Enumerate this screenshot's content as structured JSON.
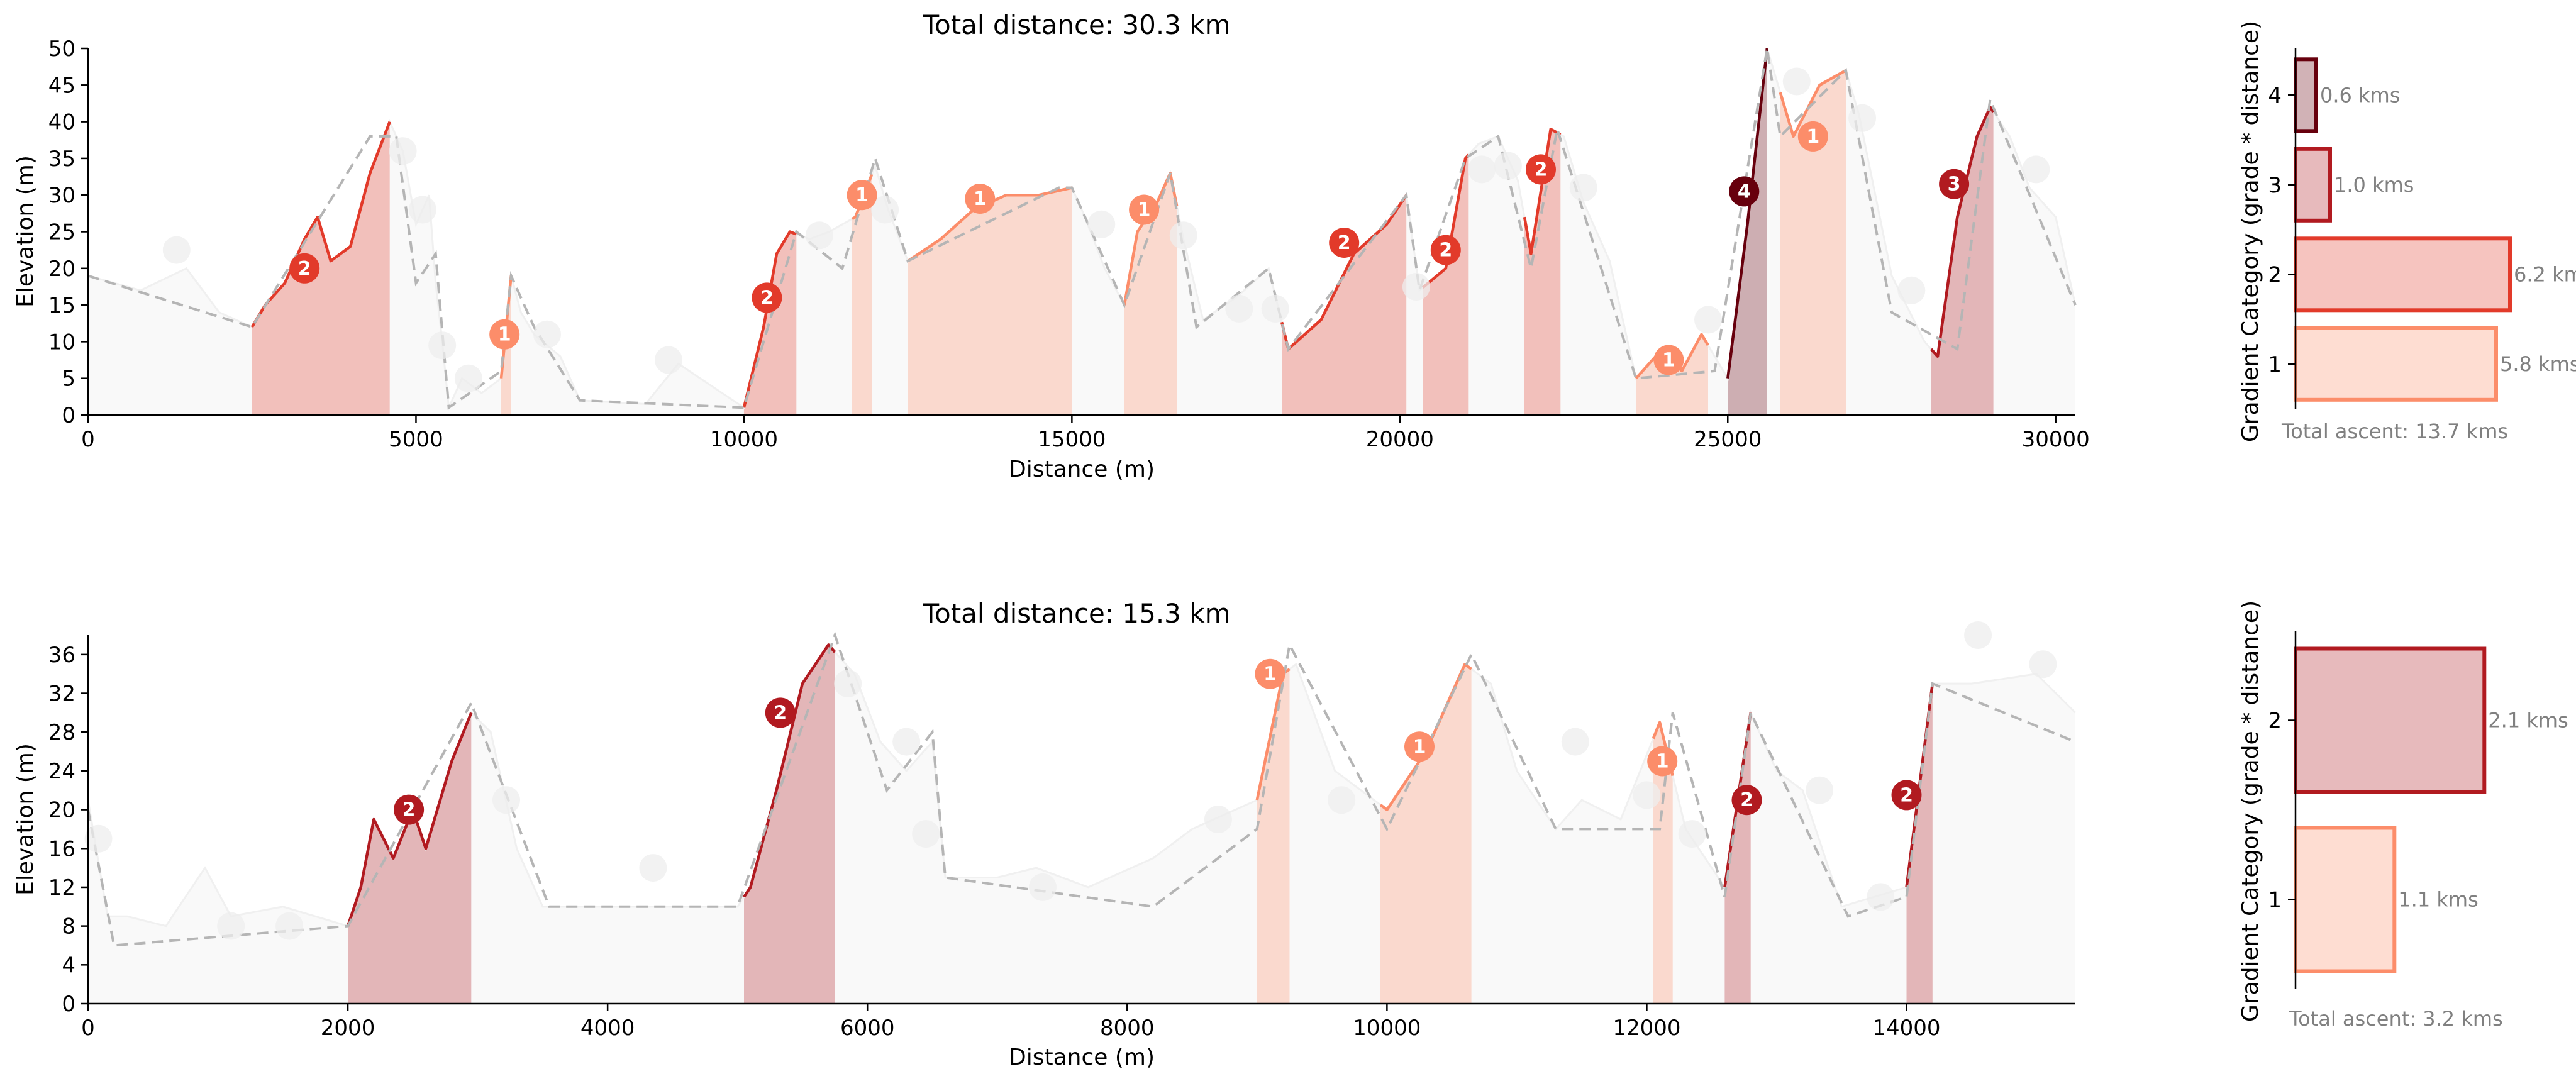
{
  "colors": {
    "cat1": "#fc8d6a",
    "cat2": "#e23a2a",
    "cat3": "#b11a20",
    "cat4": "#67000d",
    "baseline": "#f0f0f0",
    "road": "#b5b5b5"
  },
  "chart_data": [
    {
      "id": "top",
      "type": "area",
      "title": "Total distance: 30.3 km",
      "xlabel": "Distance (m)",
      "ylabel": "Elevation (m)",
      "xlim": [
        0,
        30300
      ],
      "ylim": [
        0,
        50
      ],
      "xticks": [
        "0",
        "5000",
        "10000",
        "15000",
        "20000",
        "25000",
        "30000"
      ],
      "yticks": [
        "0",
        "5",
        "10",
        "15",
        "20",
        "25",
        "30",
        "35",
        "40",
        "45",
        "50"
      ],
      "profile": [
        [
          0,
          19
        ],
        [
          800,
          17
        ],
        [
          1500,
          20
        ],
        [
          2000,
          14
        ],
        [
          2500,
          12
        ],
        [
          2700,
          15
        ],
        [
          3000,
          18
        ],
        [
          3300,
          24
        ],
        [
          3500,
          27
        ],
        [
          3700,
          21
        ],
        [
          4000,
          23
        ],
        [
          4300,
          33
        ],
        [
          4600,
          40
        ],
        [
          4800,
          36
        ],
        [
          5000,
          26
        ],
        [
          5200,
          30
        ],
        [
          5300,
          18
        ],
        [
          5400,
          10
        ],
        [
          5500,
          1
        ],
        [
          5700,
          5
        ],
        [
          6000,
          3
        ],
        [
          6300,
          5
        ],
        [
          6450,
          19
        ],
        [
          6600,
          14
        ],
        [
          6800,
          11
        ],
        [
          7200,
          8
        ],
        [
          7500,
          2
        ],
        [
          8500,
          1.5
        ],
        [
          9000,
          7
        ],
        [
          9500,
          4
        ],
        [
          10000,
          1
        ],
        [
          10300,
          12
        ],
        [
          10500,
          22
        ],
        [
          10700,
          25
        ],
        [
          11000,
          24
        ],
        [
          11300,
          25
        ],
        [
          11700,
          27
        ],
        [
          12000,
          34
        ],
        [
          12200,
          28
        ],
        [
          12500,
          21
        ],
        [
          13000,
          24
        ],
        [
          13500,
          28
        ],
        [
          14000,
          30
        ],
        [
          14500,
          30
        ],
        [
          15000,
          31
        ],
        [
          15200,
          27
        ],
        [
          15500,
          20
        ],
        [
          15800,
          15
        ],
        [
          16000,
          25
        ],
        [
          16300,
          29
        ],
        [
          16500,
          33
        ],
        [
          16700,
          24
        ],
        [
          17000,
          13
        ],
        [
          17500,
          16
        ],
        [
          18000,
          20
        ],
        [
          18300,
          9
        ],
        [
          18800,
          13
        ],
        [
          19300,
          22
        ],
        [
          19800,
          26
        ],
        [
          20100,
          30
        ],
        [
          20300,
          17
        ],
        [
          20700,
          20
        ],
        [
          21000,
          35
        ],
        [
          21200,
          37
        ],
        [
          21500,
          38
        ],
        [
          21800,
          32
        ],
        [
          22000,
          22
        ],
        [
          22300,
          39
        ],
        [
          22500,
          38
        ],
        [
          22800,
          29
        ],
        [
          23200,
          21
        ],
        [
          23600,
          5
        ],
        [
          24000,
          9
        ],
        [
          24300,
          6
        ],
        [
          24600,
          11
        ],
        [
          25000,
          5
        ],
        [
          25300,
          26
        ],
        [
          25600,
          50
        ],
        [
          25800,
          44
        ],
        [
          26000,
          38
        ],
        [
          26400,
          45
        ],
        [
          26800,
          47
        ],
        [
          27000,
          41
        ],
        [
          27500,
          19
        ],
        [
          28000,
          10
        ],
        [
          28200,
          8
        ],
        [
          28500,
          27
        ],
        [
          28800,
          38
        ],
        [
          29000,
          42
        ],
        [
          29300,
          38
        ],
        [
          29600,
          31
        ],
        [
          30000,
          27
        ],
        [
          30300,
          15
        ]
      ],
      "road": [
        [
          0,
          19
        ],
        [
          2500,
          12
        ],
        [
          4300,
          38
        ],
        [
          4700,
          38
        ],
        [
          5000,
          18
        ],
        [
          5300,
          22
        ],
        [
          5500,
          1
        ],
        [
          6300,
          6
        ],
        [
          6450,
          19
        ],
        [
          6800,
          12
        ],
        [
          7500,
          2
        ],
        [
          10000,
          1
        ],
        [
          10800,
          25
        ],
        [
          11500,
          20
        ],
        [
          12000,
          35
        ],
        [
          12500,
          21
        ],
        [
          14800,
          31
        ],
        [
          15000,
          31
        ],
        [
          15800,
          15
        ],
        [
          16500,
          33
        ],
        [
          16900,
          12
        ],
        [
          18000,
          20
        ],
        [
          18300,
          9
        ],
        [
          20100,
          30
        ],
        [
          20300,
          17
        ],
        [
          21000,
          35
        ],
        [
          21500,
          38
        ],
        [
          22000,
          20
        ],
        [
          22400,
          39
        ],
        [
          23600,
          5
        ],
        [
          24800,
          6
        ],
        [
          25600,
          50
        ],
        [
          25800,
          38
        ],
        [
          26800,
          47
        ],
        [
          27500,
          14
        ],
        [
          28500,
          9
        ],
        [
          29000,
          43
        ],
        [
          30300,
          15
        ]
      ],
      "climbs": [
        {
          "start": 2500,
          "end": 4600,
          "cat": 2
        },
        {
          "start": 6300,
          "end": 6450,
          "cat": 1
        },
        {
          "start": 10000,
          "end": 10800,
          "cat": 2
        },
        {
          "start": 11650,
          "end": 11950,
          "cat": 1
        },
        {
          "start": 12500,
          "end": 15000,
          "cat": 1
        },
        {
          "start": 15800,
          "end": 16600,
          "cat": 1
        },
        {
          "start": 18200,
          "end": 20100,
          "cat": 2
        },
        {
          "start": 20350,
          "end": 21050,
          "cat": 2
        },
        {
          "start": 21900,
          "end": 22450,
          "cat": 2
        },
        {
          "start": 23600,
          "end": 24700,
          "cat": 1
        },
        {
          "start": 25000,
          "end": 25600,
          "cat": 4
        },
        {
          "start": 25800,
          "end": 26800,
          "cat": 1
        },
        {
          "start": 28100,
          "end": 29050,
          "cat": 3
        }
      ],
      "markers": [
        {
          "x": 3300,
          "y": 20,
          "label": "2",
          "cat": 2
        },
        {
          "x": 6350,
          "y": 11,
          "label": "1",
          "cat": 1
        },
        {
          "x": 10350,
          "y": 16,
          "label": "2",
          "cat": 2
        },
        {
          "x": 11800,
          "y": 30,
          "label": "1",
          "cat": 1
        },
        {
          "x": 13600,
          "y": 29.5,
          "label": "1",
          "cat": 1
        },
        {
          "x": 16100,
          "y": 28,
          "label": "1",
          "cat": 1
        },
        {
          "x": 19150,
          "y": 23.5,
          "label": "2",
          "cat": 2
        },
        {
          "x": 20700,
          "y": 22.5,
          "label": "2",
          "cat": 2
        },
        {
          "x": 22150,
          "y": 33.5,
          "label": "2",
          "cat": 2
        },
        {
          "x": 24100,
          "y": 7.5,
          "label": "1",
          "cat": 1
        },
        {
          "x": 25250,
          "y": 30.5,
          "label": "4",
          "cat": 4
        },
        {
          "x": 26300,
          "y": 38,
          "label": "1",
          "cat": 1
        },
        {
          "x": 28450,
          "y": 31.5,
          "label": "3",
          "cat": 3
        }
      ],
      "ghost_markers": [
        [
          1350,
          22.5
        ],
        [
          4800,
          36
        ],
        [
          5100,
          28
        ],
        [
          5400,
          9.5
        ],
        [
          5800,
          5
        ],
        [
          7000,
          11
        ],
        [
          8850,
          7.5
        ],
        [
          11150,
          24.5
        ],
        [
          12150,
          28
        ],
        [
          15450,
          26
        ],
        [
          16700,
          24.5
        ],
        [
          17550,
          14.5
        ],
        [
          18100,
          14.5
        ],
        [
          20250,
          17.5
        ],
        [
          21250,
          33.5
        ],
        [
          21650,
          34
        ],
        [
          22800,
          31
        ],
        [
          24700,
          13
        ],
        [
          26050,
          45.5
        ],
        [
          27050,
          40.5
        ],
        [
          27800,
          17
        ],
        [
          29700,
          33.5
        ]
      ],
      "summary": {
        "ylabel": "Gradient Category (grade * distance)",
        "categories": [
          "1",
          "2",
          "3",
          "4"
        ],
        "values": [
          5.8,
          6.2,
          1.0,
          0.6
        ],
        "labels": [
          "5.8 kms",
          "6.2 kms",
          "1.0 kms",
          "0.6 kms"
        ],
        "total_ascent": "Total ascent:  13.7 kms"
      }
    },
    {
      "id": "bottom",
      "type": "area",
      "title": "Total distance: 15.3 km",
      "xlabel": "Distance (m)",
      "ylabel": "Elevation (m)",
      "xlim": [
        0,
        15300
      ],
      "ylim": [
        0,
        38
      ],
      "xticks": [
        "0",
        "2000",
        "4000",
        "6000",
        "8000",
        "10000",
        "12000",
        "14000"
      ],
      "yticks": [
        "0",
        "4",
        "8",
        "12",
        "16",
        "20",
        "24",
        "28",
        "32",
        "36"
      ],
      "profile": [
        [
          0,
          21
        ],
        [
          150,
          9
        ],
        [
          300,
          9
        ],
        [
          600,
          8
        ],
        [
          900,
          14
        ],
        [
          1100,
          9
        ],
        [
          1500,
          10
        ],
        [
          2000,
          8
        ],
        [
          2100,
          12
        ],
        [
          2200,
          19
        ],
        [
          2350,
          15
        ],
        [
          2500,
          20
        ],
        [
          2600,
          16
        ],
        [
          2800,
          25
        ],
        [
          2950,
          30
        ],
        [
          3100,
          28
        ],
        [
          3300,
          16
        ],
        [
          3500,
          10
        ],
        [
          4000,
          10
        ],
        [
          4500,
          10
        ],
        [
          5000,
          10
        ],
        [
          5100,
          12
        ],
        [
          5300,
          22
        ],
        [
          5500,
          33
        ],
        [
          5700,
          37
        ],
        [
          5900,
          34
        ],
        [
          6100,
          27
        ],
        [
          6300,
          24
        ],
        [
          6500,
          27
        ],
        [
          6600,
          13
        ],
        [
          7000,
          13
        ],
        [
          7300,
          14
        ],
        [
          7700,
          12
        ],
        [
          8200,
          15
        ],
        [
          8500,
          18
        ],
        [
          9000,
          21
        ],
        [
          9200,
          34
        ],
        [
          9300,
          35
        ],
        [
          9600,
          24
        ],
        [
          10000,
          20
        ],
        [
          10300,
          26
        ],
        [
          10600,
          35
        ],
        [
          10800,
          33
        ],
        [
          11000,
          24
        ],
        [
          11300,
          18
        ],
        [
          11500,
          21
        ],
        [
          11800,
          19
        ],
        [
          12100,
          29
        ],
        [
          12300,
          18
        ],
        [
          12600,
          12
        ],
        [
          12800,
          30
        ],
        [
          13000,
          24
        ],
        [
          13200,
          22
        ],
        [
          13500,
          10
        ],
        [
          14000,
          12
        ],
        [
          14200,
          33
        ],
        [
          14500,
          33
        ],
        [
          15000,
          34
        ],
        [
          15300,
          30
        ]
      ],
      "road": [
        [
          0,
          20
        ],
        [
          200,
          6
        ],
        [
          2000,
          8
        ],
        [
          2950,
          31
        ],
        [
          3550,
          10
        ],
        [
          5000,
          10
        ],
        [
          5750,
          38
        ],
        [
          6150,
          22
        ],
        [
          6500,
          28
        ],
        [
          6600,
          13
        ],
        [
          8200,
          10
        ],
        [
          9000,
          18
        ],
        [
          9250,
          37
        ],
        [
          10000,
          18
        ],
        [
          10650,
          36
        ],
        [
          11300,
          18
        ],
        [
          12100,
          18
        ],
        [
          12200,
          30
        ],
        [
          12600,
          11
        ],
        [
          12800,
          30
        ],
        [
          13550,
          9
        ],
        [
          14000,
          11
        ],
        [
          14200,
          33
        ],
        [
          15300,
          27
        ]
      ],
      "climbs": [
        {
          "start": 2000,
          "end": 2950,
          "cat": 3
        },
        {
          "start": 5050,
          "end": 5750,
          "cat": 3
        },
        {
          "start": 9000,
          "end": 9250,
          "cat": 1
        },
        {
          "start": 9950,
          "end": 10650,
          "cat": 1
        },
        {
          "start": 12050,
          "end": 12200,
          "cat": 1
        },
        {
          "start": 12600,
          "end": 12800,
          "cat": 3
        },
        {
          "start": 14000,
          "end": 14200,
          "cat": 3
        }
      ],
      "markers": [
        {
          "x": 2470,
          "y": 20,
          "label": "2",
          "cat": 3
        },
        {
          "x": 5330,
          "y": 30,
          "label": "2",
          "cat": 3
        },
        {
          "x": 9100,
          "y": 34,
          "label": "1",
          "cat": 1
        },
        {
          "x": 10250,
          "y": 26.5,
          "label": "1",
          "cat": 1
        },
        {
          "x": 12120,
          "y": 25,
          "label": "1",
          "cat": 1
        },
        {
          "x": 12770,
          "y": 21,
          "label": "2",
          "cat": 3
        },
        {
          "x": 14000,
          "y": 21.5,
          "label": "2",
          "cat": 3
        }
      ],
      "ghost_markers": [
        [
          80,
          17
        ],
        [
          1100,
          8
        ],
        [
          1550,
          8
        ],
        [
          3220,
          21
        ],
        [
          4350,
          14
        ],
        [
          5850,
          33
        ],
        [
          6300,
          27
        ],
        [
          6450,
          17.5
        ],
        [
          7350,
          12
        ],
        [
          8700,
          19
        ],
        [
          9650,
          21
        ],
        [
          11450,
          27
        ],
        [
          12000,
          21.5
        ],
        [
          12350,
          17.5
        ],
        [
          13330,
          22
        ],
        [
          13800,
          11
        ],
        [
          14550,
          38
        ],
        [
          15050,
          35
        ]
      ],
      "summary": {
        "ylabel": "Gradient Category (grade * distance)",
        "categories": [
          "1",
          "2"
        ],
        "values": [
          1.1,
          2.1
        ],
        "labels": [
          "1.1 kms",
          "2.1 kms"
        ],
        "total_ascent": "Total ascent:  3.2 kms"
      }
    }
  ]
}
